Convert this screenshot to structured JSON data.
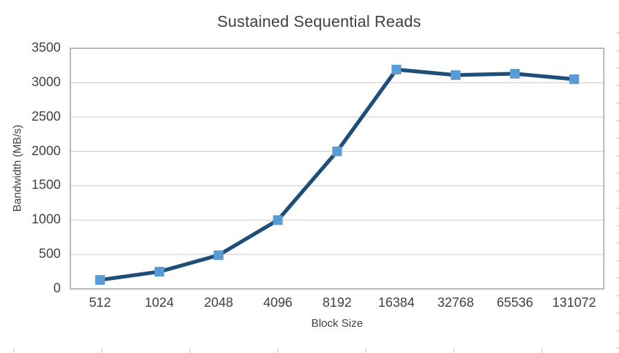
{
  "page": {
    "background": "#FFFFFF"
  },
  "chart_data": {
    "type": "line",
    "title": "Sustained Sequential Reads",
    "xlabel": "Block Size",
    "ylabel": "Bandwidth (MB/s)",
    "categories": [
      "512",
      "1024",
      "2048",
      "4096",
      "8192",
      "16384",
      "32768",
      "65536",
      "131072"
    ],
    "values": [
      130,
      250,
      490,
      1000,
      2000,
      3190,
      3110,
      3130,
      3050
    ],
    "ylim": [
      0,
      3500
    ],
    "yticks": [
      0,
      500,
      1000,
      1500,
      2000,
      2500,
      3000,
      3500
    ],
    "grid": true,
    "legend_position": "none",
    "marker_shape": "square",
    "colors": {
      "line": "#1F4E79",
      "marker": "#5B9BD5",
      "gridline": "#C9C9C9",
      "plot_border": "#A6A6A6",
      "axis_text": "#404040",
      "title_text": "#3F3F3F",
      "edge_artifact": "#CBD0D6"
    }
  }
}
